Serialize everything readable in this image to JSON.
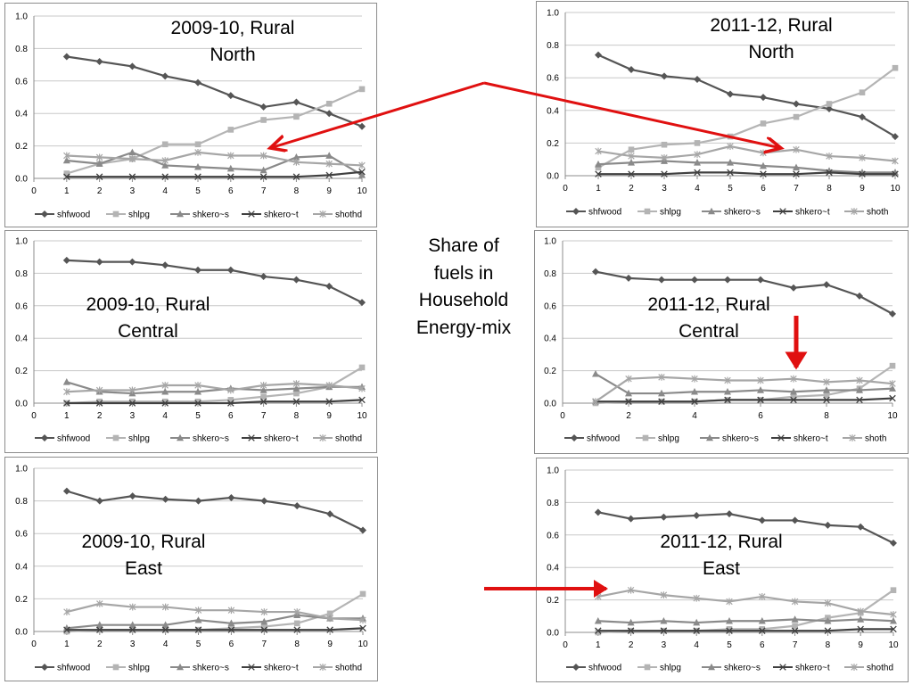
{
  "center_label": "Share of\nfuels in\nHousehold\nEnergy-mix",
  "series_colors": [
    "#555555",
    "#b4b4b4",
    "#8a8a8a",
    "#404040",
    "#a6a6a6"
  ],
  "series_markers": [
    "diamond",
    "square",
    "triangle",
    "x",
    "star"
  ],
  "arrow_color": "#e01010",
  "chart_data": [
    {
      "type": "line",
      "title": "2009-10, Rural\nNorth",
      "x": [
        1,
        2,
        3,
        4,
        5,
        6,
        7,
        8,
        9,
        10
      ],
      "xlim": [
        0,
        10
      ],
      "xticks": [
        0,
        1,
        2,
        3,
        4,
        5,
        6,
        7,
        8,
        9,
        10
      ],
      "ylim": [
        0,
        1
      ],
      "yticks": [
        "0.0",
        "0.2",
        "0.4",
        "0.6",
        "0.8",
        "1.0"
      ],
      "grid": true,
      "legend": "bottom",
      "series": [
        {
          "name": "shfwood",
          "values": [
            0.75,
            0.72,
            0.69,
            0.63,
            0.59,
            0.51,
            0.44,
            0.47,
            0.4,
            0.32
          ]
        },
        {
          "name": "shlpg",
          "values": [
            0.03,
            0.09,
            0.12,
            0.21,
            0.21,
            0.3,
            0.36,
            0.38,
            0.46,
            0.55
          ]
        },
        {
          "name": "shkero~s",
          "values": [
            0.11,
            0.09,
            0.16,
            0.08,
            0.07,
            0.06,
            0.05,
            0.13,
            0.14,
            0.02
          ]
        },
        {
          "name": "shkero~t",
          "values": [
            0.01,
            0.01,
            0.01,
            0.01,
            0.01,
            0.01,
            0.01,
            0.01,
            0.02,
            0.04
          ]
        },
        {
          "name": "shothd",
          "values": [
            0.14,
            0.13,
            0.12,
            0.11,
            0.16,
            0.14,
            0.14,
            0.1,
            0.09,
            0.08
          ]
        }
      ]
    },
    {
      "type": "line",
      "title": "2011-12, Rural\nNorth",
      "x": [
        1,
        2,
        3,
        4,
        5,
        6,
        7,
        8,
        9,
        10
      ],
      "xlim": [
        0,
        10
      ],
      "xticks": [
        0,
        1,
        2,
        3,
        4,
        5,
        6,
        7,
        8,
        9,
        10
      ],
      "ylim": [
        0,
        1
      ],
      "yticks": [
        "0.0",
        "0.2",
        "0.4",
        "0.6",
        "0.8",
        "1.0"
      ],
      "grid": true,
      "legend": "bottom",
      "series": [
        {
          "name": "shfwood",
          "values": [
            0.74,
            0.65,
            0.61,
            0.59,
            0.5,
            0.48,
            0.44,
            0.41,
            0.36,
            0.24
          ]
        },
        {
          "name": "shlpg",
          "values": [
            0.05,
            0.16,
            0.19,
            0.2,
            0.24,
            0.32,
            0.36,
            0.44,
            0.51,
            0.66
          ]
        },
        {
          "name": "shkero~s",
          "values": [
            0.07,
            0.08,
            0.09,
            0.08,
            0.08,
            0.06,
            0.05,
            0.03,
            0.02,
            0.02
          ]
        },
        {
          "name": "shkero~t",
          "values": [
            0.01,
            0.01,
            0.01,
            0.02,
            0.02,
            0.01,
            0.01,
            0.02,
            0.01,
            0.01
          ]
        },
        {
          "name": "shoth",
          "values": [
            0.15,
            0.12,
            0.11,
            0.13,
            0.18,
            0.14,
            0.16,
            0.12,
            0.11,
            0.09
          ]
        }
      ]
    },
    {
      "type": "line",
      "title": "2009-10, Rural\nCentral",
      "x": [
        1,
        2,
        3,
        4,
        5,
        6,
        7,
        8,
        9,
        10
      ],
      "xlim": [
        0,
        10
      ],
      "xticks": [
        0,
        1,
        2,
        3,
        4,
        5,
        6,
        7,
        8,
        9,
        10
      ],
      "ylim": [
        0,
        1
      ],
      "yticks": [
        "0.0",
        "0.2",
        "0.4",
        "0.6",
        "0.8",
        "1.0"
      ],
      "grid": true,
      "legend": "bottom",
      "series": [
        {
          "name": "shfwood",
          "values": [
            0.88,
            0.87,
            0.87,
            0.85,
            0.82,
            0.82,
            0.78,
            0.76,
            0.72,
            0.62
          ]
        },
        {
          "name": "shlpg",
          "values": [
            0.0,
            0.01,
            0.01,
            0.01,
            0.01,
            0.02,
            0.04,
            0.06,
            0.1,
            0.22
          ]
        },
        {
          "name": "shkero~s",
          "values": [
            0.13,
            0.07,
            0.06,
            0.07,
            0.07,
            0.09,
            0.08,
            0.09,
            0.1,
            0.1
          ]
        },
        {
          "name": "shkero~t",
          "values": [
            0.0,
            0.0,
            0.0,
            0.0,
            0.0,
            0.0,
            0.01,
            0.01,
            0.01,
            0.02
          ]
        },
        {
          "name": "shothd",
          "values": [
            0.07,
            0.08,
            0.08,
            0.11,
            0.11,
            0.08,
            0.11,
            0.12,
            0.11,
            0.09
          ]
        }
      ]
    },
    {
      "type": "line",
      "title": "2011-12, Rural\nCentral",
      "x": [
        1,
        2,
        3,
        4,
        5,
        6,
        7,
        8,
        9,
        10
      ],
      "xlim": [
        0,
        10
      ],
      "xticks": [
        0,
        2,
        4,
        6,
        8,
        10
      ],
      "ylim": [
        0,
        1
      ],
      "yticks": [
        "0.0",
        "0.2",
        "0.4",
        "0.6",
        "0.8",
        "1.0"
      ],
      "grid": true,
      "legend": "bottom",
      "series": [
        {
          "name": "shfwood",
          "values": [
            0.81,
            0.77,
            0.76,
            0.76,
            0.76,
            0.76,
            0.71,
            0.73,
            0.66,
            0.55
          ]
        },
        {
          "name": "shlpg",
          "values": [
            0.0,
            0.01,
            0.01,
            0.01,
            0.02,
            0.02,
            0.04,
            0.05,
            0.09,
            0.23
          ]
        },
        {
          "name": "shkero~s",
          "values": [
            0.18,
            0.06,
            0.06,
            0.07,
            0.07,
            0.08,
            0.07,
            0.08,
            0.08,
            0.09
          ]
        },
        {
          "name": "shkero~t",
          "values": [
            0.01,
            0.01,
            0.01,
            0.01,
            0.02,
            0.02,
            0.02,
            0.02,
            0.02,
            0.03
          ]
        },
        {
          "name": "shoth",
          "values": [
            0.01,
            0.15,
            0.16,
            0.15,
            0.14,
            0.14,
            0.15,
            0.13,
            0.14,
            0.12
          ]
        }
      ]
    },
    {
      "type": "line",
      "title": "2009-10, Rural\nEast",
      "x": [
        1,
        2,
        3,
        4,
        5,
        6,
        7,
        8,
        9,
        10
      ],
      "xlim": [
        0,
        10
      ],
      "xticks": [
        0,
        1,
        2,
        3,
        4,
        5,
        6,
        7,
        8,
        9,
        10
      ],
      "ylim": [
        0,
        1
      ],
      "yticks": [
        "0.0",
        "0.2",
        "0.4",
        "0.6",
        "0.8",
        "1.0"
      ],
      "grid": true,
      "legend": "bottom",
      "series": [
        {
          "name": "shfwood",
          "values": [
            0.86,
            0.8,
            0.83,
            0.81,
            0.8,
            0.82,
            0.8,
            0.77,
            0.72,
            0.62
          ]
        },
        {
          "name": "shlpg",
          "values": [
            0.0,
            0.01,
            0.01,
            0.01,
            0.01,
            0.02,
            0.03,
            0.05,
            0.11,
            0.23
          ]
        },
        {
          "name": "shkero~s",
          "values": [
            0.02,
            0.04,
            0.04,
            0.04,
            0.07,
            0.05,
            0.06,
            0.1,
            0.08,
            0.08
          ]
        },
        {
          "name": "shkero~t",
          "values": [
            0.01,
            0.01,
            0.01,
            0.01,
            0.01,
            0.01,
            0.01,
            0.01,
            0.01,
            0.02
          ]
        },
        {
          "name": "shothd",
          "values": [
            0.12,
            0.17,
            0.15,
            0.15,
            0.13,
            0.13,
            0.12,
            0.12,
            0.08,
            0.07
          ]
        }
      ]
    },
    {
      "type": "line",
      "title": "2011-12, Rural\nEast",
      "x": [
        1,
        2,
        3,
        4,
        5,
        6,
        7,
        8,
        9,
        10
      ],
      "xlim": [
        0,
        10
      ],
      "xticks": [
        0,
        1,
        2,
        3,
        4,
        5,
        6,
        7,
        8,
        9,
        10
      ],
      "ylim": [
        0,
        1
      ],
      "yticks": [
        "0.0",
        "0.2",
        "0.4",
        "0.6",
        "0.8",
        "1.0"
      ],
      "grid": true,
      "legend": "bottom",
      "series": [
        {
          "name": "shfwood",
          "values": [
            0.74,
            0.7,
            0.71,
            0.72,
            0.73,
            0.69,
            0.69,
            0.66,
            0.65,
            0.55
          ]
        },
        {
          "name": "shlpg",
          "values": [
            0.0,
            0.01,
            0.01,
            0.01,
            0.02,
            0.02,
            0.04,
            0.09,
            0.12,
            0.26
          ]
        },
        {
          "name": "shkero~s",
          "values": [
            0.07,
            0.06,
            0.07,
            0.06,
            0.07,
            0.07,
            0.08,
            0.07,
            0.08,
            0.07
          ]
        },
        {
          "name": "shkero~t",
          "values": [
            0.01,
            0.01,
            0.01,
            0.01,
            0.01,
            0.01,
            0.01,
            0.01,
            0.02,
            0.02
          ]
        },
        {
          "name": "shothd",
          "values": [
            0.22,
            0.26,
            0.23,
            0.21,
            0.19,
            0.22,
            0.19,
            0.18,
            0.13,
            0.11
          ]
        }
      ]
    }
  ]
}
